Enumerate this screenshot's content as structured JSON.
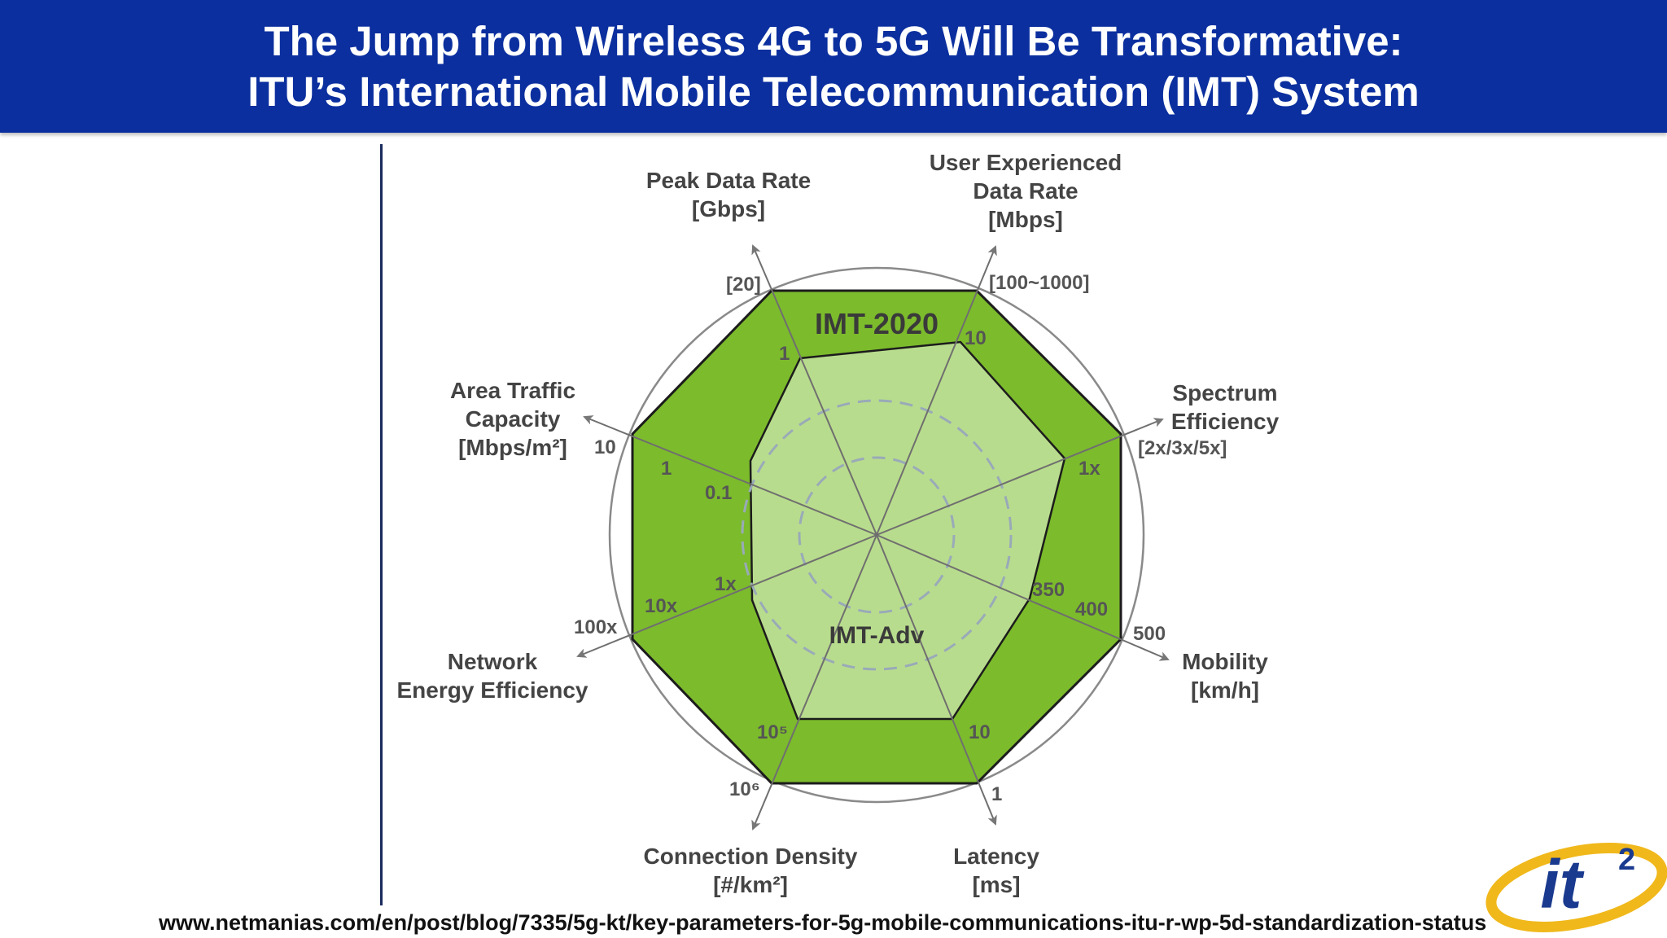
{
  "header": {
    "title_line1": "The Jump from Wireless 4G to 5G Will Be Transformative:",
    "title_line2": "ITU’s International Mobile Telecommunication (IMT) System"
  },
  "diagram": {
    "series": [
      {
        "name": "IMT-2020",
        "color": "#7cbb2c"
      },
      {
        "name": "IMT-Adv",
        "color": "#b8dc8d"
      }
    ],
    "axes": [
      {
        "id": "peak-data-rate",
        "label": [
          "Peak Data Rate",
          "[Gbps]"
        ],
        "inner": "1",
        "outer": "[20]"
      },
      {
        "id": "user-experienced-data-rate",
        "label": [
          "User Experienced",
          "Data Rate",
          "[Mbps]"
        ],
        "inner": "10",
        "outer": "[100~1000]"
      },
      {
        "id": "spectrum-efficiency",
        "label": [
          "Spectrum",
          "Efficiency"
        ],
        "inner": "1x",
        "outer": "[2x/3x/5x]"
      },
      {
        "id": "mobility",
        "label": [
          "Mobility",
          "[km/h]"
        ],
        "inner": "350",
        "middle": "400",
        "outer": "500"
      },
      {
        "id": "latency",
        "label": [
          "Latency",
          "[ms]"
        ],
        "inner": "10",
        "outer": "1"
      },
      {
        "id": "connection-density",
        "label": [
          "Connection Density",
          "[#/km²]"
        ],
        "inner": "10⁵",
        "outer": "10⁶"
      },
      {
        "id": "network-energy-efficiency",
        "label": [
          "Network",
          "Energy Efficiency"
        ],
        "inner": "1x",
        "middle": "10x",
        "outer": "100x"
      },
      {
        "id": "area-traffic-capacity",
        "label": [
          "Area Traffic",
          "Capacity",
          "[Mbps/m²]"
        ],
        "inner": "0.1",
        "middle": "1",
        "outer": "10"
      }
    ]
  },
  "footer": {
    "source": "www.netmanias.com/en/post/blog/7335/5g-kt/key-parameters-for-5g-mobile-communications-itu-r-wp-5d-standardization-status",
    "logo_text": "it",
    "logo_sup": "2"
  },
  "colors": {
    "header_bg": "#0b2f9e",
    "logo_blue": "#1a3a8f",
    "logo_gold": "#f0b81b"
  }
}
